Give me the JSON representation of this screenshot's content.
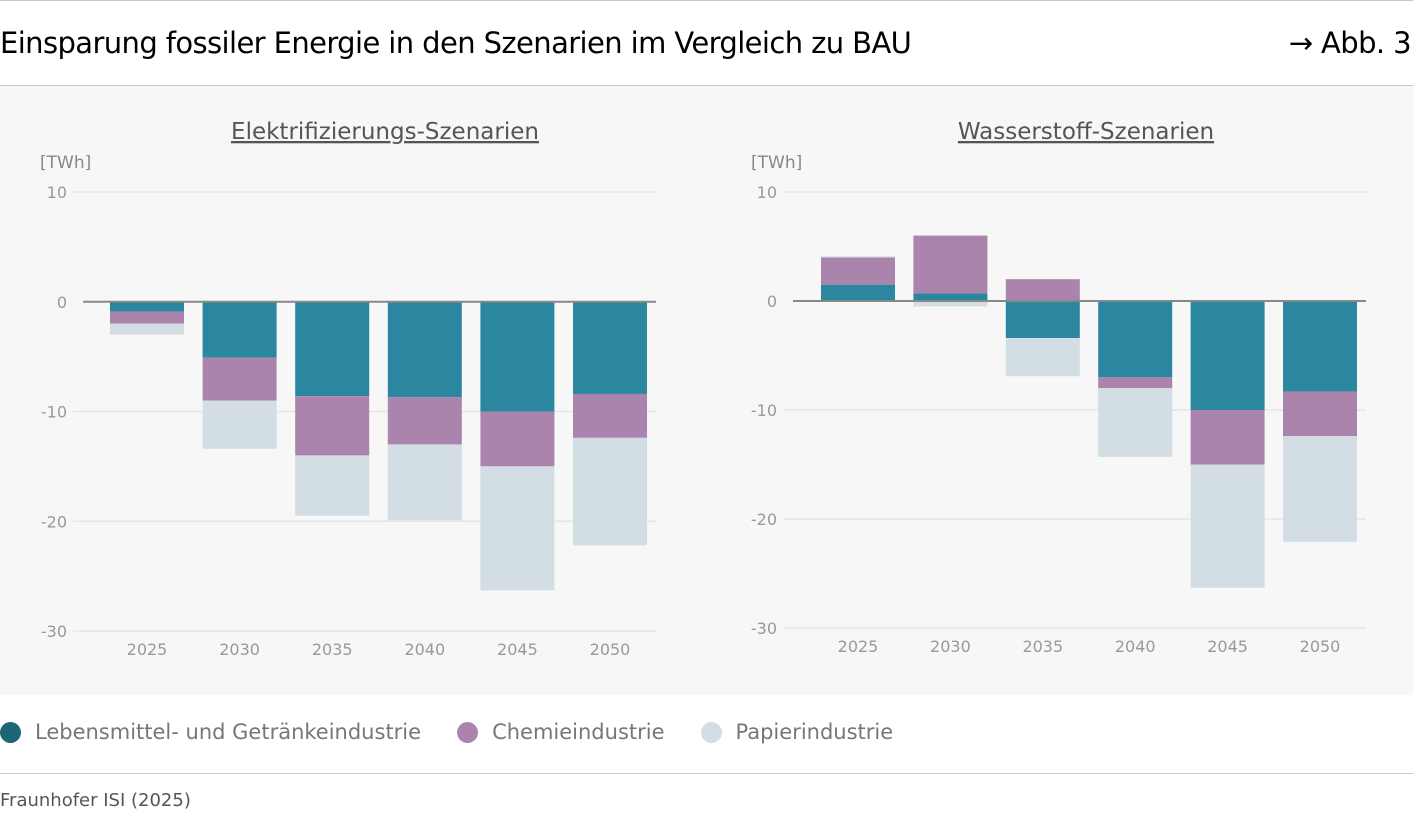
{
  "header": {
    "title": "Einsparung fossiler Energie in den Szenarien im Vergleich zu BAU",
    "figure_ref": "→ Abb. 3"
  },
  "colors": {
    "food": "#2b87a0",
    "food_legend": "#1d6577",
    "chem": "#ab84ad",
    "paper": "#d3dee4",
    "zero": "#888888",
    "grid": "#e6e6e6"
  },
  "legend": [
    {
      "label": "Lebensmittel- und Getränkeindustrie",
      "color": "#1d6577"
    },
    {
      "label": "Chemieindustrie",
      "color": "#ab84ad"
    },
    {
      "label": "Papierindustrie",
      "color": "#d3dee4"
    }
  ],
  "source": "Fraunhofer ISI (2025)",
  "chart_data": [
    {
      "type": "bar",
      "stacked": true,
      "title": "Elektrifizierungs-Szenarien",
      "ylabel": "[TWh]",
      "ylim": [
        -30,
        10
      ],
      "yticks": [
        "10",
        "0",
        "-10",
        "-20",
        "-30"
      ],
      "grid": true,
      "categories": [
        "2025",
        "2030",
        "2035",
        "2040",
        "2045",
        "2050"
      ],
      "series": [
        {
          "name": "Lebensmittel- und Getränkeindustrie",
          "values": [
            -0.9,
            -5.1,
            -8.6,
            -8.7,
            -10.0,
            -8.4
          ]
        },
        {
          "name": "Chemieindustrie",
          "values": [
            -1.1,
            -3.9,
            -5.4,
            -4.3,
            -5.0,
            -4.0
          ]
        },
        {
          "name": "Papierindustrie",
          "values": [
            -1.0,
            -4.4,
            -5.5,
            -6.9,
            -11.3,
            -9.8
          ]
        }
      ]
    },
    {
      "type": "bar",
      "stacked": true,
      "title": "Wasserstoff-Szenarien",
      "ylabel": "[TWh]",
      "ylim": [
        -30,
        10
      ],
      "yticks": [
        "10",
        "0",
        "-10",
        "-20",
        "-30"
      ],
      "grid": true,
      "categories": [
        "2025",
        "2030",
        "2035",
        "2040",
        "2045",
        "2050"
      ],
      "series": [
        {
          "name": "Lebensmittel- und Getränkeindustrie",
          "values": [
            1.5,
            0.7,
            -3.4,
            -7.0,
            -10.0,
            -8.3
          ]
        },
        {
          "name": "Chemieindustrie",
          "values": [
            2.5,
            5.3,
            2.0,
            -1.0,
            -5.0,
            -4.1
          ]
        },
        {
          "name": "Papierindustrie",
          "values": [
            0.1,
            -0.5,
            -3.5,
            -6.3,
            -11.3,
            -9.7
          ]
        }
      ]
    }
  ]
}
